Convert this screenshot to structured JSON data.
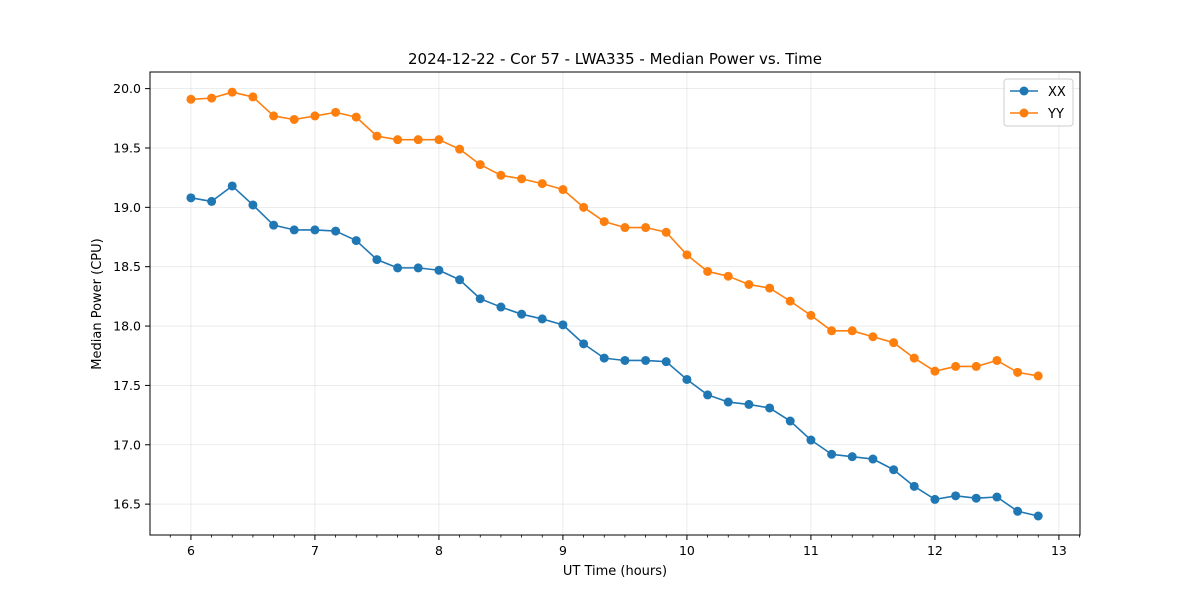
{
  "chart_data": {
    "type": "line",
    "title": "2024-12-22 - Cor 57 - LWA335 - Median Power vs. Time",
    "xlabel": "UT Time (hours)",
    "ylabel": "Median Power (CPU)",
    "xlim": [
      5.67,
      13.17
    ],
    "ylim": [
      16.24,
      20.14
    ],
    "xticks": [
      6,
      7,
      8,
      9,
      10,
      11,
      12,
      13
    ],
    "xtick_labels": [
      "6",
      "7",
      "8",
      "9",
      "10",
      "11",
      "12",
      "13"
    ],
    "yticks": [
      16.5,
      17.0,
      17.5,
      18.0,
      18.5,
      19.0,
      19.5,
      20.0
    ],
    "ytick_labels": [
      "16.5",
      "17.0",
      "17.5",
      "18.0",
      "18.5",
      "19.0",
      "19.5",
      "20.0"
    ],
    "grid": true,
    "legend_position": "top-right",
    "x": [
      6.0,
      6.167,
      6.333,
      6.5,
      6.667,
      6.833,
      7.0,
      7.167,
      7.333,
      7.5,
      7.667,
      7.833,
      8.0,
      8.167,
      8.333,
      8.5,
      8.667,
      8.833,
      9.0,
      9.167,
      9.333,
      9.5,
      9.667,
      9.833,
      10.0,
      10.167,
      10.333,
      10.5,
      10.667,
      10.833,
      11.0,
      11.167,
      11.333,
      11.5,
      11.667,
      11.833,
      12.0,
      12.167,
      12.333,
      12.5,
      12.667,
      12.833
    ],
    "series": [
      {
        "name": "XX",
        "color": "#1f77b4",
        "values": [
          19.08,
          19.05,
          19.18,
          19.02,
          18.85,
          18.81,
          18.81,
          18.8,
          18.72,
          18.56,
          18.49,
          18.49,
          18.47,
          18.39,
          18.23,
          18.16,
          18.1,
          18.06,
          18.01,
          17.85,
          17.73,
          17.71,
          17.71,
          17.7,
          17.55,
          17.42,
          17.36,
          17.34,
          17.31,
          17.2,
          17.04,
          16.92,
          16.9,
          16.88,
          16.79,
          16.65,
          16.54,
          16.57,
          16.55,
          16.56,
          16.44,
          16.4
        ]
      },
      {
        "name": "YY",
        "color": "#ff7f0e",
        "values": [
          19.91,
          19.92,
          19.97,
          19.93,
          19.77,
          19.74,
          19.77,
          19.8,
          19.76,
          19.6,
          19.57,
          19.57,
          19.57,
          19.49,
          19.36,
          19.27,
          19.24,
          19.2,
          19.15,
          19.0,
          18.88,
          18.83,
          18.83,
          18.79,
          18.6,
          18.46,
          18.42,
          18.35,
          18.32,
          18.21,
          18.09,
          17.96,
          17.96,
          17.91,
          17.86,
          17.73,
          17.62,
          17.66,
          17.66,
          17.71,
          17.61,
          17.58
        ]
      }
    ]
  }
}
